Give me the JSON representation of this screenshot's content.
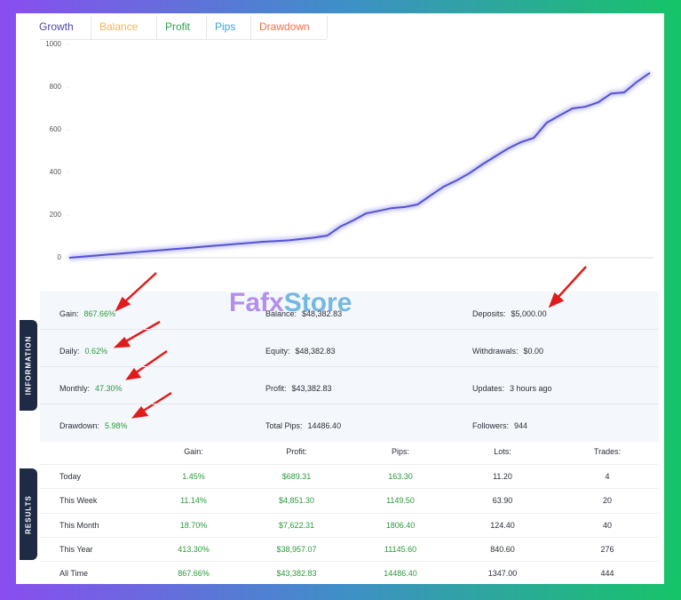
{
  "tabs": [
    "Growth",
    "Balance",
    "Profit",
    "Pips",
    "Drawdown"
  ],
  "chart_data": {
    "type": "line",
    "categories": [
      null,
      null,
      null,
      null,
      null,
      null,
      null,
      null,
      null,
      null,
      null,
      null,
      null,
      null,
      null,
      null,
      null,
      null,
      null,
      null,
      null,
      null,
      null,
      null,
      null,
      null,
      null,
      null,
      null,
      null,
      null,
      null,
      null,
      null,
      null,
      null,
      null,
      null,
      null,
      null,
      null,
      null,
      null,
      null,
      null,
      null
    ],
    "series": [
      {
        "color": "#5552d8",
        "values": [
          0,
          5,
          10,
          15,
          20,
          25,
          30,
          35,
          40,
          45,
          50,
          55,
          60,
          65,
          70,
          75,
          78,
          82,
          88,
          95,
          104,
          146,
          175,
          208,
          220,
          233,
          238,
          250,
          292,
          333,
          362,
          396,
          437,
          475,
          512,
          542,
          562,
          633,
          667,
          700,
          708,
          729,
          770,
          775,
          825,
          867
        ]
      }
    ],
    "ylim": [
      0,
      1000
    ],
    "yticks": [
      0,
      200,
      400,
      600,
      800,
      1000
    ],
    "grid": false
  },
  "watermark": {
    "brand": "Fafx",
    "suffix": "Store"
  },
  "information": {
    "title": "INFORMATION",
    "rows": [
      [
        {
          "label": "Gain:",
          "value": "867.66%"
        },
        {
          "label": "Balance:",
          "value": "$48,382.83"
        },
        {
          "label": "Deposits:",
          "value": "$5,000.00"
        }
      ],
      [
        {
          "label": "Daily:",
          "value": "0.62%"
        },
        {
          "label": "Equity:",
          "value": "$48,382.83"
        },
        {
          "label": "Withdrawals:",
          "value": "$0.00"
        }
      ],
      [
        {
          "label": "Monthly:",
          "value": "47.30%"
        },
        {
          "label": "Profit:",
          "value": "$43,382.83"
        },
        {
          "label": "Updates:",
          "value": "3 hours ago"
        }
      ],
      [
        {
          "label": "Drawdown:",
          "value": "5.98%"
        },
        {
          "label": "Total Pips:",
          "value": "14486.40"
        },
        {
          "label": "Followers:",
          "value": "944"
        }
      ]
    ]
  },
  "results": {
    "title": "RESULTS",
    "columns": [
      "Gain:",
      "Profit:",
      "Pips:",
      "Lots:",
      "Trades:"
    ],
    "rows": [
      {
        "label": "Today",
        "cells": [
          "1.45%",
          "$689.31",
          "163.30",
          "11.20",
          "4"
        ]
      },
      {
        "label": "This Week",
        "cells": [
          "11.14%",
          "$4,851.30",
          "1149.50",
          "63.90",
          "20"
        ]
      },
      {
        "label": "This Month",
        "cells": [
          "18.70%",
          "$7,622.31",
          "1806.40",
          "124.40",
          "40"
        ]
      },
      {
        "label": "This Year",
        "cells": [
          "413.30%",
          "$38,957.07",
          "11145.60",
          "840.60",
          "276"
        ]
      },
      {
        "label": "All Time",
        "cells": [
          "867.66%",
          "$43,382.83",
          "14486.40",
          "1347.00",
          "444"
        ]
      }
    ]
  }
}
